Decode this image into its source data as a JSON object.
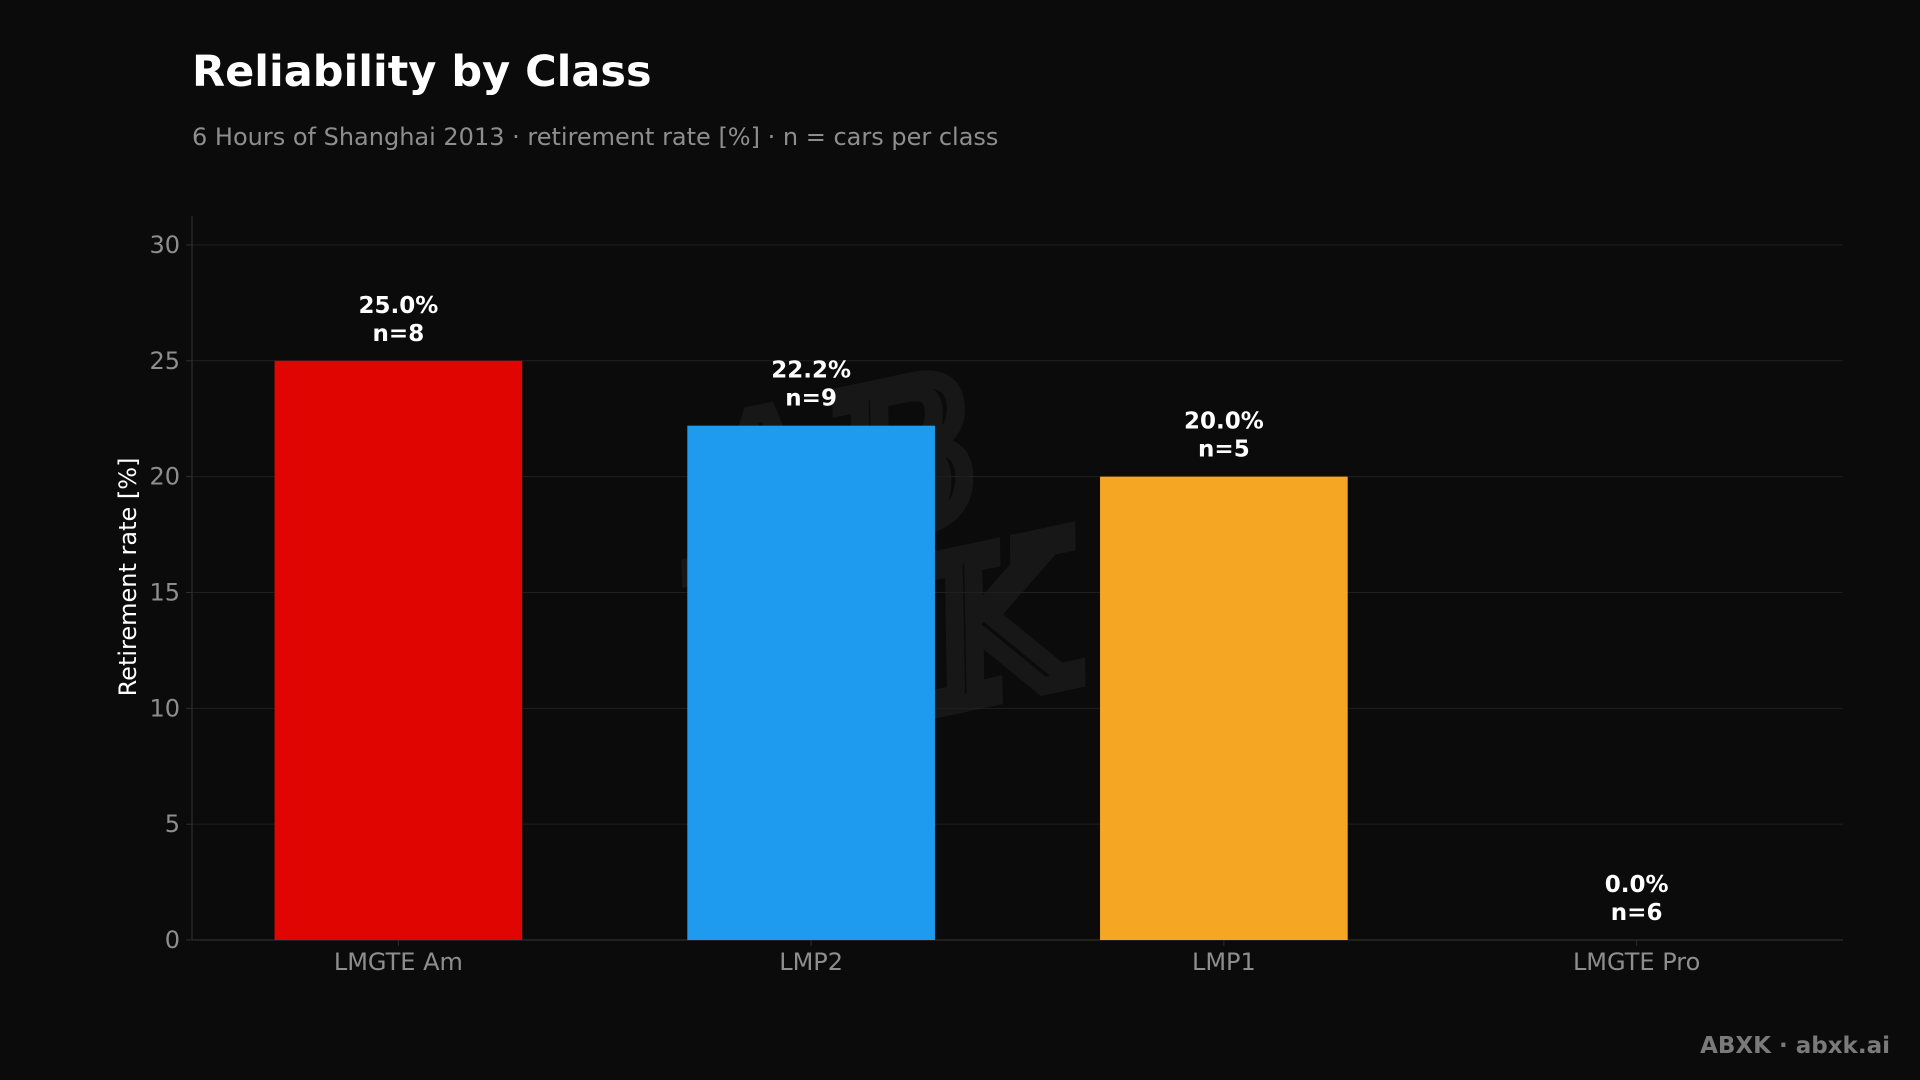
{
  "title": "Reliability by Class",
  "subtitle": "6 Hours of Shanghai 2013 · retirement rate [%] · n = cars per class",
  "footer": "ABXK · abxk.ai",
  "watermark": {
    "line1": "AB",
    "line2": "XK"
  },
  "colors": {
    "background": "#0b0b0b",
    "grid": "#1f1f1f",
    "axis": "#2e2e2e",
    "text": "#ffffff",
    "muted": "#8e8e8e"
  },
  "chart_data": {
    "type": "bar",
    "categories": [
      "LMGTE Am",
      "LMP2",
      "LMP1",
      "LMGTE Pro"
    ],
    "values": [
      25.0,
      22.2,
      20.0,
      0.0
    ],
    "value_labels": [
      "25.0%",
      "22.2%",
      "20.0%",
      "0.0%"
    ],
    "n_labels": [
      "n=8",
      "n=9",
      "n=5",
      "n=6"
    ],
    "bar_colors": [
      "#e00500",
      "#1e9bef",
      "#f5a724",
      "#9a9a9a"
    ],
    "title": "Reliability by Class",
    "subtitle": "6 Hours of Shanghai 2013 · retirement rate [%] · n = cars per class",
    "xlabel": "",
    "ylabel": "Retirement rate [%]",
    "ylim": [
      0,
      31.25
    ],
    "yticks": [
      0,
      5,
      10,
      15,
      20,
      25,
      30
    ],
    "grid": true,
    "legend": "none"
  }
}
